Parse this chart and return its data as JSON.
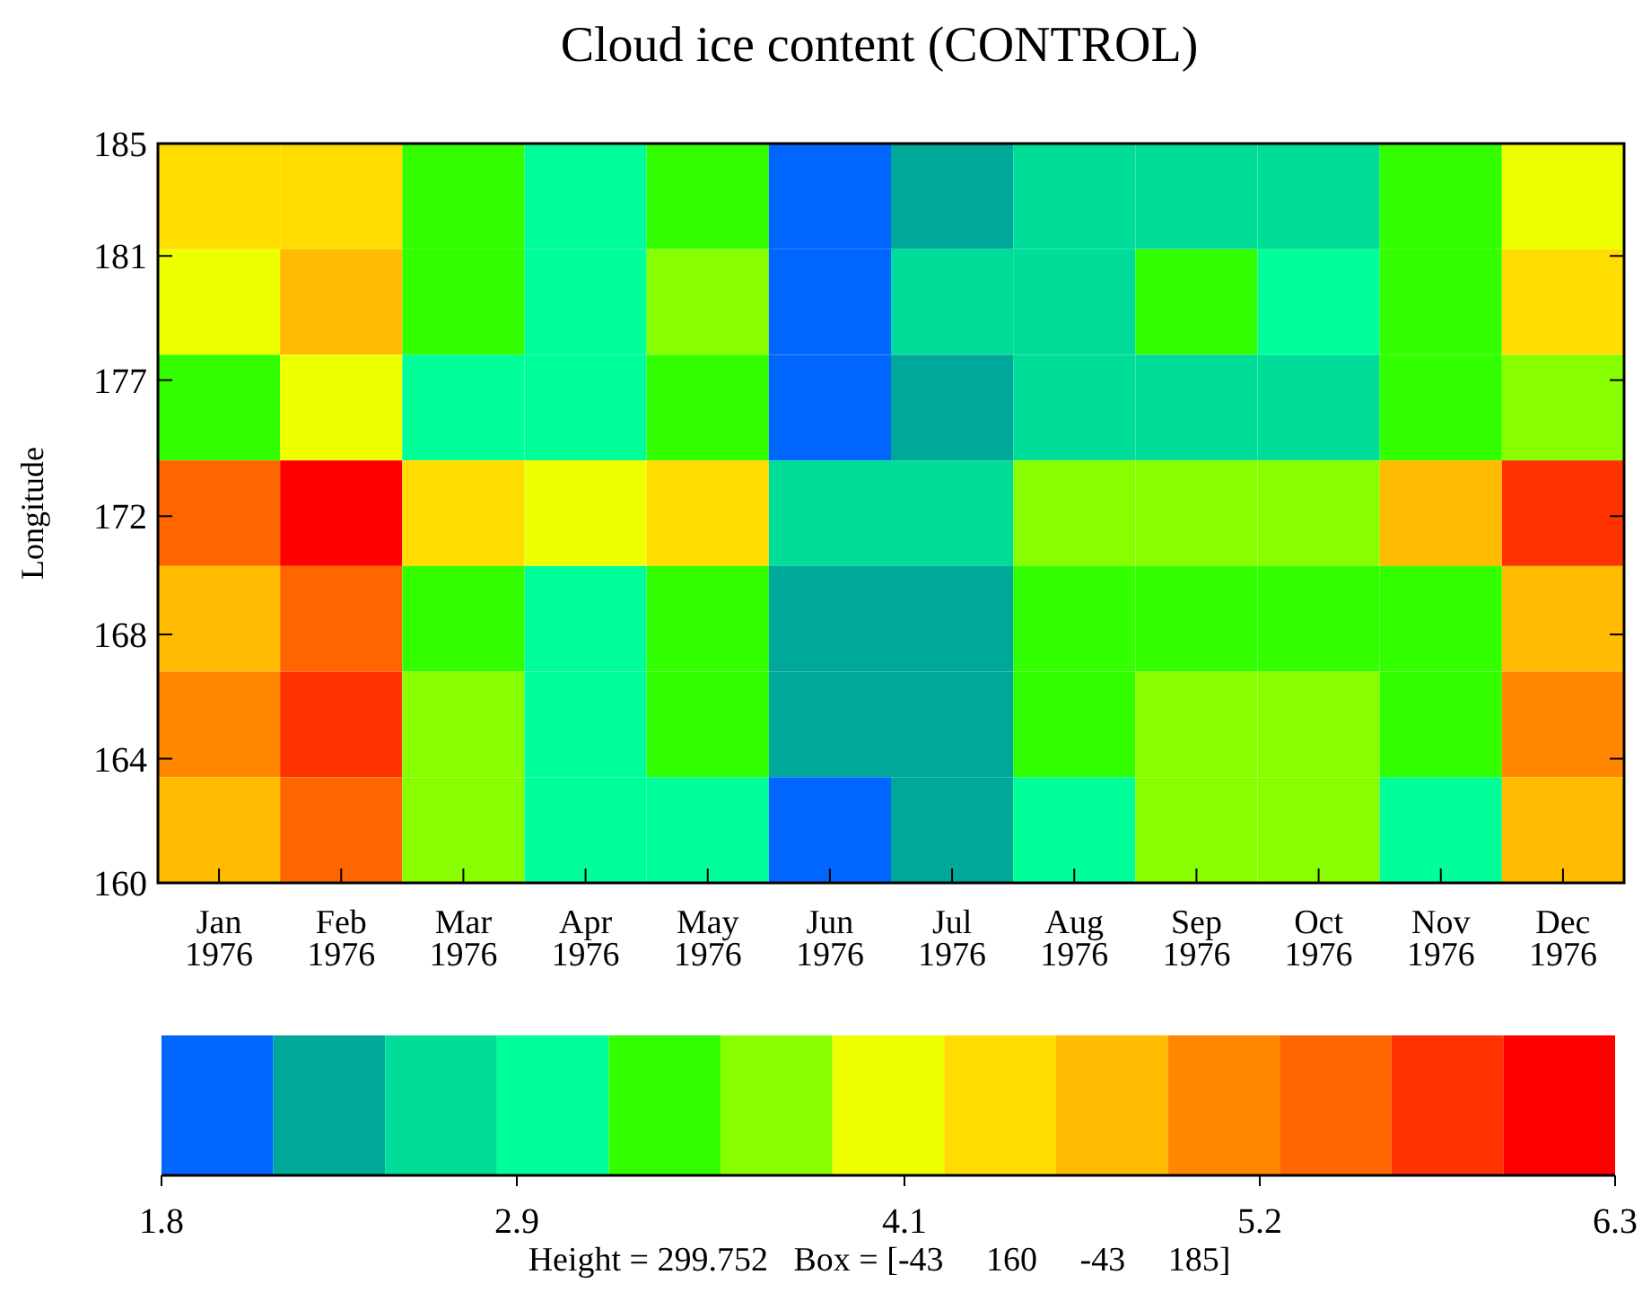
{
  "chart_data": {
    "type": "heatmap",
    "title": "Cloud ice content (CONTROL)",
    "ylabel": "Longitude",
    "categories": [
      "Jan\n1976",
      "Feb\n1976",
      "Mar\n1976",
      "Apr\n1976",
      "May\n1976",
      "Jun\n1976",
      "Jul\n1976",
      "Aug\n1976",
      "Sep\n1976",
      "Oct\n1976",
      "Nov\n1976",
      "Dec\n1976"
    ],
    "ylim": [
      160,
      185
    ],
    "yticks": [
      160,
      {
        "value": 164.2,
        "label": "164"
      },
      {
        "value": 168.4,
        "label": "168"
      },
      {
        "value": 172.4,
        "label": "172"
      },
      177,
      {
        "value": 181.2,
        "label": "181"
      },
      185
    ],
    "cells": [
      [
        4.4,
        4.4,
        3.36,
        3.01,
        3.36,
        1.97,
        2.32,
        2.67,
        2.67,
        2.67,
        3.36,
        4.05
      ],
      [
        4.05,
        4.75,
        3.36,
        3.01,
        3.71,
        1.97,
        2.67,
        2.67,
        3.36,
        3.01,
        3.36,
        4.4
      ],
      [
        3.36,
        4.05,
        3.01,
        3.01,
        3.36,
        1.97,
        2.32,
        2.67,
        2.67,
        2.67,
        3.36,
        3.71
      ],
      [
        5.44,
        6.13,
        4.4,
        4.05,
        4.4,
        2.67,
        2.67,
        3.71,
        3.71,
        3.71,
        4.75,
        5.79
      ],
      [
        4.75,
        5.44,
        3.36,
        3.01,
        3.36,
        2.32,
        2.32,
        3.36,
        3.36,
        3.36,
        3.36,
        4.75
      ],
      [
        5.09,
        5.79,
        3.71,
        3.01,
        3.36,
        2.32,
        2.32,
        3.36,
        3.71,
        3.71,
        3.36,
        5.09
      ],
      [
        4.75,
        5.44,
        3.71,
        3.01,
        3.01,
        1.97,
        2.32,
        3.01,
        3.71,
        3.71,
        3.01,
        4.75
      ]
    ],
    "clim": [
      1.8,
      6.3
    ],
    "cticks": [
      1.8,
      2.9,
      4.1,
      5.2,
      6.3
    ],
    "colors": [
      "#0066ff",
      "#00a89a",
      "#00dd99",
      "#00ff99",
      "#33ff00",
      "#88ff00",
      "#eeff00",
      "#ffdd00",
      "#ffbb00",
      "#ff8800",
      "#ff6600",
      "#ff3300",
      "#ff0000"
    ],
    "annotations": [
      "Height = 299.752   Box = [-43     160     -43     185]"
    ]
  }
}
